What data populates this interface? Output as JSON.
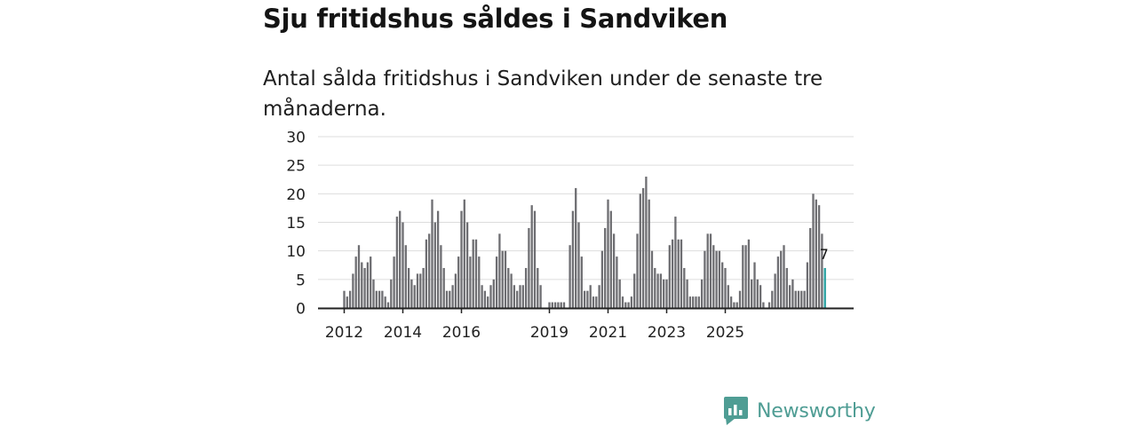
{
  "title": "Sju fritidshus såldes i Sandviken",
  "subtitle": "Antal sålda fritidshus i Sandviken under de senaste tre månaderna.",
  "brand": {
    "name": "Newsworthy",
    "logo_icon": "bar-chart-speech-bubble-icon"
  },
  "colors": {
    "bar": "#6e6e72",
    "highlight": "#25a0a0",
    "grid": "#dddddd",
    "axis": "#222222",
    "brand": "#4f9d94"
  },
  "chart_data": {
    "type": "bar",
    "title": "Sju fritidshus såldes i Sandviken",
    "xlabel": "",
    "ylabel": "",
    "ylim": [
      0,
      30
    ],
    "yticks": [
      0,
      5,
      10,
      15,
      20,
      25,
      30
    ],
    "xtick_labels": [
      {
        "label": "2012",
        "index": 0
      },
      {
        "label": "2014",
        "index": 20
      },
      {
        "label": "2016",
        "index": 40
      },
      {
        "label": "2019",
        "index": 70
      },
      {
        "label": "2021",
        "index": 90
      },
      {
        "label": "2023",
        "index": 110
      },
      {
        "label": "2025",
        "index": 130
      }
    ],
    "start": "2012-01",
    "frequency": "monthly (rolling three-month total)",
    "values": [
      3,
      2,
      3,
      6,
      9,
      11,
      8,
      7,
      8,
      9,
      5,
      3,
      3,
      3,
      2,
      1,
      5,
      9,
      16,
      17,
      15,
      11,
      7,
      5,
      4,
      6,
      6,
      7,
      12,
      13,
      19,
      15,
      17,
      11,
      7,
      3,
      3,
      4,
      6,
      9,
      17,
      19,
      15,
      9,
      12,
      12,
      9,
      4,
      3,
      2,
      4,
      5,
      9,
      13,
      10,
      10,
      7,
      6,
      4,
      3,
      4,
      4,
      7,
      14,
      18,
      17,
      7,
      4,
      0,
      0,
      1,
      1,
      1,
      1,
      1,
      1,
      0,
      11,
      17,
      21,
      15,
      9,
      3,
      3,
      4,
      2,
      2,
      4,
      10,
      14,
      19,
      17,
      13,
      9,
      5,
      2,
      1,
      1,
      2,
      6,
      13,
      20,
      21,
      23,
      19,
      10,
      7,
      6,
      6,
      5,
      5,
      11,
      12,
      16,
      12,
      12,
      7,
      5,
      2,
      2,
      2,
      2,
      5,
      10,
      13,
      13,
      11,
      10,
      10,
      8,
      7,
      4,
      2,
      1,
      1,
      3,
      11,
      11,
      12,
      5,
      8,
      5,
      4,
      1,
      0,
      1,
      3,
      6,
      9,
      10,
      11,
      7,
      4,
      5,
      3,
      3,
      3,
      3,
      8,
      14,
      20,
      19,
      18,
      13,
      7
    ],
    "highlight_index": 164,
    "highlight_label": "7"
  }
}
